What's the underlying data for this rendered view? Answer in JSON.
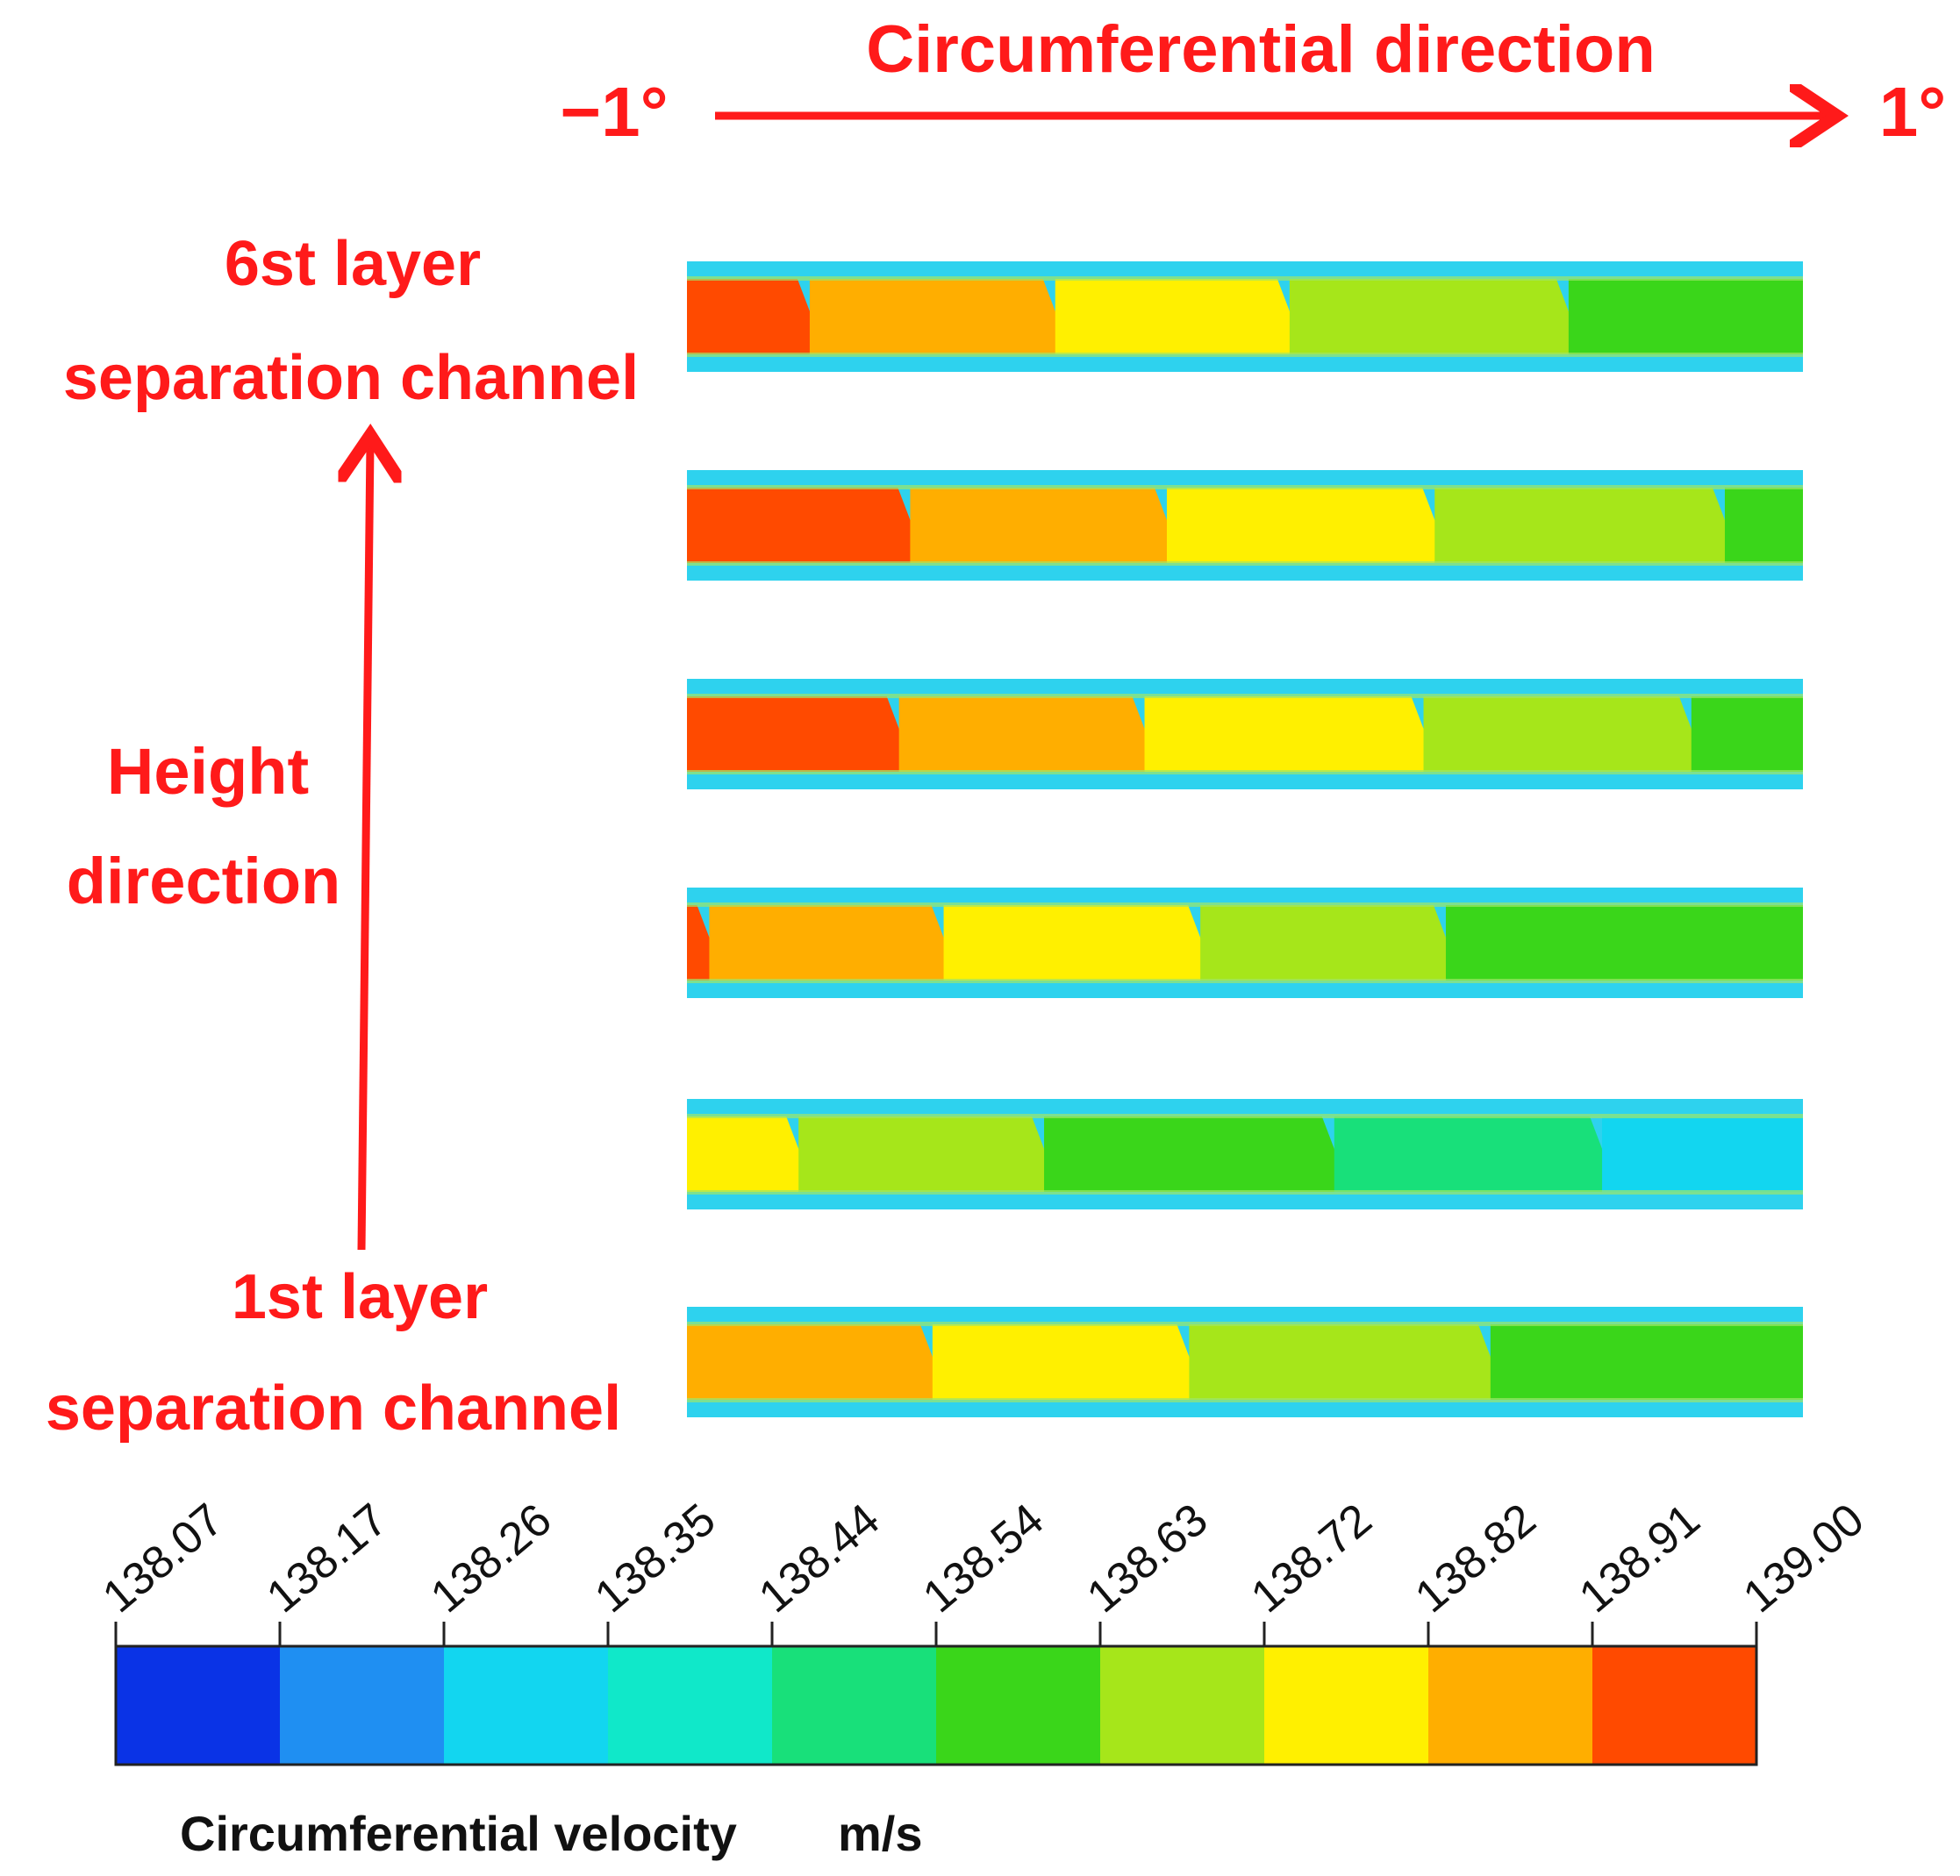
{
  "figure": {
    "circumferential_title": "Circumferential direction",
    "angle_start": "−1°",
    "angle_end": "1°",
    "top_layer_line1": "6st layer",
    "top_layer_line2": "separation channel",
    "height_line1": "Height",
    "height_line2": "direction",
    "bottom_layer_line1": "1st layer",
    "bottom_layer_line2": "separation channel",
    "accent_color": "#ff1a1a"
  },
  "colorbar": {
    "title": "Circumferential velocity",
    "unit": "m/s",
    "ticks": [
      "138.07",
      "138.17",
      "138.26",
      "138.35",
      "138.44",
      "138.54",
      "138.63",
      "138.72",
      "138.82",
      "138.91",
      "139.00"
    ],
    "colors": [
      "#0a33e6",
      "#1f8ff2",
      "#12d6f0",
      "#10e8c9",
      "#18e07a",
      "#3ad61a",
      "#a6e61a",
      "#fff000",
      "#ffae00",
      "#ff4a00"
    ]
  },
  "channels": [
    {
      "layer": 6,
      "bands": [
        {
          "to": 0.11,
          "color": "#ff4a00"
        },
        {
          "to": 0.33,
          "color": "#ffae00"
        },
        {
          "to": 0.54,
          "color": "#fff000"
        },
        {
          "to": 0.79,
          "color": "#a6e61a"
        },
        {
          "to": 1.0,
          "color": "#3ad61a"
        }
      ]
    },
    {
      "layer": 5,
      "bands": [
        {
          "to": 0.2,
          "color": "#ff4a00"
        },
        {
          "to": 0.43,
          "color": "#ffae00"
        },
        {
          "to": 0.67,
          "color": "#fff000"
        },
        {
          "to": 0.93,
          "color": "#a6e61a"
        },
        {
          "to": 1.0,
          "color": "#3ad61a"
        }
      ]
    },
    {
      "layer": 4,
      "bands": [
        {
          "to": 0.19,
          "color": "#ff4a00"
        },
        {
          "to": 0.41,
          "color": "#ffae00"
        },
        {
          "to": 0.66,
          "color": "#fff000"
        },
        {
          "to": 0.9,
          "color": "#a6e61a"
        },
        {
          "to": 1.0,
          "color": "#3ad61a"
        }
      ]
    },
    {
      "layer": 3,
      "bands": [
        {
          "to": 0.02,
          "color": "#ff4a00"
        },
        {
          "to": 0.23,
          "color": "#ffae00"
        },
        {
          "to": 0.46,
          "color": "#fff000"
        },
        {
          "to": 0.68,
          "color": "#a6e61a"
        },
        {
          "to": 1.0,
          "color": "#3ad61a"
        }
      ]
    },
    {
      "layer": 2,
      "bands": [
        {
          "to": 0.1,
          "color": "#fff000"
        },
        {
          "to": 0.32,
          "color": "#a6e61a"
        },
        {
          "to": 0.58,
          "color": "#3ad61a"
        },
        {
          "to": 0.82,
          "color": "#18e07a"
        },
        {
          "to": 1.0,
          "color": "#12d6f0"
        }
      ]
    },
    {
      "layer": 1,
      "bands": [
        {
          "to": 0.22,
          "color": "#ffae00"
        },
        {
          "to": 0.45,
          "color": "#fff000"
        },
        {
          "to": 0.72,
          "color": "#a6e61a"
        },
        {
          "to": 1.0,
          "color": "#3ad61a"
        }
      ]
    }
  ]
}
